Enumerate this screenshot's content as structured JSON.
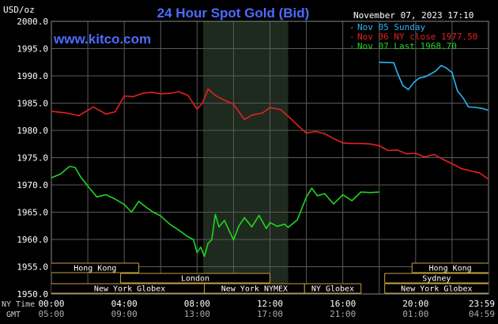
{
  "colors": {
    "background": "#000000",
    "plot_bg": "#000000",
    "grid": "#5a5a5a",
    "axis_text": "#ffffff",
    "title": "#4d6bff",
    "website": "#4d6bff",
    "ny_session_band": "#1e2a1e",
    "session_box_border": "#c8a040",
    "session_text": "#ffffff"
  },
  "chart_data": {
    "type": "line",
    "title": "24 Hour Spot Gold (Bid)",
    "ylabel": "USD/oz",
    "website": "www.kitco.com",
    "timestamp": "November 07, 2023 17:10",
    "ylim": [
      1950,
      2000
    ],
    "yticks": [
      "2000.0",
      "1995.0",
      "1990.0",
      "1985.0",
      "1980.0",
      "1975.0",
      "1970.0",
      "1965.0",
      "1960.0",
      "1955.0",
      "1950.0"
    ],
    "ytick_values": [
      2000,
      1995,
      1990,
      1985,
      1980,
      1975,
      1970,
      1965,
      1960,
      1955,
      1950
    ],
    "xlim": [
      0,
      24
    ],
    "xticks_ny": [
      "00:00",
      "04:00",
      "08:00",
      "12:00",
      "16:00",
      "20:00",
      "23:59"
    ],
    "xticks_gmt": [
      "05:00",
      "09:00",
      "13:00",
      "17:00",
      "21:00",
      "01:00",
      "04:59"
    ],
    "xtick_hours": [
      0,
      4,
      8,
      12,
      16,
      20,
      23.98
    ],
    "x_row_label_ny": "NY Time",
    "x_row_label_gmt": "GMT",
    "ny_band": [
      8.33,
      13.0
    ],
    "grid": true,
    "legend_position": "top-right",
    "series": [
      {
        "name": "Nov 05 Sunday",
        "color": "#29b6f6",
        "x": [
          18.0,
          18.8,
          19.0,
          19.3,
          19.6,
          19.9,
          20.2,
          20.5,
          20.8,
          21.1,
          21.4,
          21.7,
          22.0,
          22.3,
          22.6,
          22.9,
          23.3,
          23.7,
          23.98
        ],
        "values": [
          1992.5,
          1992.4,
          1990.5,
          1988.2,
          1987.5,
          1988.8,
          1989.6,
          1989.8,
          1990.3,
          1990.9,
          1991.9,
          1991.4,
          1990.6,
          1987.2,
          1986.0,
          1984.3,
          1984.2,
          1984.0,
          1983.7
        ]
      },
      {
        "name": "Nov 06 NY close 1977.50",
        "color": "#e82020",
        "x": [
          0,
          0.8,
          1.5,
          2.3,
          3.0,
          3.5,
          4.0,
          4.5,
          5.0,
          5.5,
          6.0,
          6.5,
          7.0,
          7.5,
          8.0,
          8.3,
          8.6,
          9.0,
          9.4,
          10.0,
          10.6,
          11.0,
          11.6,
          12.0,
          12.6,
          13.0,
          13.5,
          14.0,
          14.5,
          15.0,
          15.5,
          16.0,
          16.5,
          17.0,
          17.5,
          18.0,
          18.5,
          19.0,
          19.5,
          20.0,
          20.5,
          21.0,
          21.5,
          22.0,
          22.5,
          23.0,
          23.5,
          23.98
        ],
        "values": [
          1983.5,
          1983.2,
          1982.7,
          1984.3,
          1983.0,
          1983.4,
          1986.3,
          1986.2,
          1986.8,
          1987.0,
          1986.7,
          1986.8,
          1987.1,
          1986.4,
          1983.9,
          1985.0,
          1987.6,
          1986.4,
          1985.7,
          1984.8,
          1982.0,
          1982.8,
          1983.2,
          1984.2,
          1983.8,
          1982.6,
          1981.0,
          1979.5,
          1979.8,
          1979.4,
          1978.5,
          1977.7,
          1977.6,
          1977.6,
          1977.5,
          1977.2,
          1976.3,
          1976.4,
          1975.7,
          1975.8,
          1975.1,
          1975.6,
          1974.7,
          1973.9,
          1973.0,
          1972.6,
          1972.2,
          1971.1
        ]
      },
      {
        "name": "Nov 07 Last 1968.70",
        "color": "#22d422",
        "x": [
          0,
          0.5,
          1.0,
          1.3,
          1.6,
          2.0,
          2.5,
          3.0,
          3.5,
          4.0,
          4.4,
          4.8,
          5.2,
          5.6,
          6.0,
          6.5,
          7.0,
          7.5,
          7.8,
          8.0,
          8.2,
          8.4,
          8.6,
          8.8,
          9.0,
          9.2,
          9.5,
          10.0,
          10.3,
          10.6,
          11.0,
          11.4,
          11.8,
          12.0,
          12.4,
          12.8,
          13.0,
          13.5,
          14.0,
          14.3,
          14.6,
          15.0,
          15.5,
          16.0,
          16.5,
          17.0,
          17.5,
          18.0
        ],
        "values": [
          1971.3,
          1972.0,
          1973.4,
          1973.2,
          1971.5,
          1969.8,
          1967.8,
          1968.2,
          1967.4,
          1966.4,
          1965.0,
          1967.0,
          1965.9,
          1965.0,
          1964.3,
          1962.8,
          1961.7,
          1960.5,
          1960.0,
          1957.6,
          1958.6,
          1956.9,
          1959.3,
          1959.9,
          1964.6,
          1962.3,
          1963.5,
          1959.9,
          1962.5,
          1964.0,
          1962.3,
          1964.4,
          1962.0,
          1963.1,
          1962.4,
          1962.8,
          1962.2,
          1963.6,
          1967.8,
          1969.4,
          1968.0,
          1968.4,
          1966.5,
          1968.2,
          1967.1,
          1968.7,
          1968.6,
          1968.7
        ]
      }
    ],
    "session_rows": [
      {
        "row": 0,
        "label": "Hong Kong",
        "start": 0,
        "end": 4.8,
        "open_left": true
      },
      {
        "row": 0,
        "label": "Hong Kong",
        "start": 19.8,
        "end": 24,
        "open_right": true
      },
      {
        "row": 1,
        "label": "London",
        "start": 3.8,
        "end": 12.0
      },
      {
        "row": 1,
        "label": "Sydney",
        "start": 18.3,
        "end": 24,
        "open_right": true
      },
      {
        "row": 2,
        "label": "New York Globex",
        "start": 0,
        "end": 8.6,
        "open_left": true
      },
      {
        "row": 2,
        "label": "New York NYMEX",
        "start": 8.4,
        "end": 13.9
      },
      {
        "row": 2,
        "label": "NY Globex",
        "start": 13.9,
        "end": 17.0
      },
      {
        "row": 2,
        "label": "New York Globex",
        "start": 18.3,
        "end": 24,
        "open_right": true
      }
    ]
  }
}
